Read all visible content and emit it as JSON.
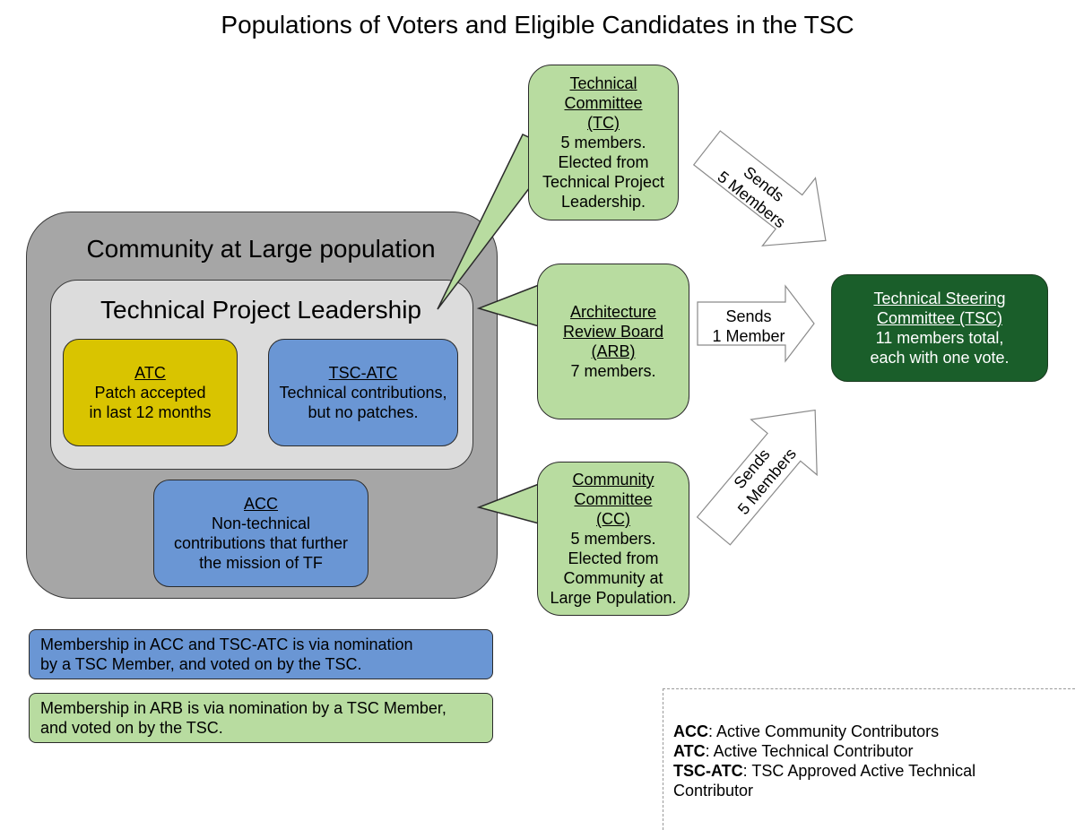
{
  "title": "Populations of Voters and Eligible Candidates in the TSC",
  "community_population": {
    "label": "Community at Large population"
  },
  "technical_project_leadership": {
    "label": "Technical Project Leadership"
  },
  "atc_box": {
    "heading": "ATC",
    "line1": "Patch accepted",
    "line2": "in last 12 months"
  },
  "tsc_atc_box": {
    "heading": "TSC-ATC",
    "line1": "Technical contributions,",
    "line2": "but no patches."
  },
  "acc_box": {
    "heading": "ACC",
    "line1": "Non-technical",
    "line2": "contributions that further",
    "line3": "the mission of TF"
  },
  "tc_box": {
    "heading1": "Technical",
    "heading2": "Committee",
    "heading3": "(TC)",
    "line1": "5 members.",
    "line2": "Elected from",
    "line3": "Technical Project",
    "line4": "Leadership."
  },
  "arb_box": {
    "heading1": "Architecture",
    "heading2": "Review Board",
    "heading3": "(ARB)",
    "line1": "7 members."
  },
  "cc_box": {
    "heading1": "Community",
    "heading2": "Committee",
    "heading3": "(CC)",
    "line1": "5 members.",
    "line2": "Elected from",
    "line3": "Community at",
    "line4": "Large Population."
  },
  "tsc_box": {
    "heading1": "Technical Steering",
    "heading2": "Committee (TSC)",
    "line1": "11 members total,",
    "line2": "each with one vote."
  },
  "arrows": {
    "tc": {
      "line1": "Sends",
      "line2": "5 Members"
    },
    "arb": {
      "line1": "Sends",
      "line2": "1 Member"
    },
    "cc": {
      "line1": "Sends",
      "line2": "5 Members"
    }
  },
  "notes": {
    "acc_tsc_atc": {
      "line1": "Membership in ACC and TSC-ATC is via nomination",
      "line2": "by a TSC Member, and voted on by the TSC."
    },
    "arb": {
      "line1": "Membership in ARB is via nomination by a TSC Member,",
      "line2": "and voted on by the TSC."
    }
  },
  "legend": {
    "acc_term": "ACC",
    "acc_def": ": Active Community Contributors",
    "atc_term": "ATC",
    "atc_def": ": Active Technical Contributor",
    "tsc_atc_term": "TSC-ATC",
    "tsc_atc_def": ": TSC Approved Active Technical",
    "tsc_atc_def2": "Contributor"
  },
  "colors": {
    "community_population": "#a6a6a6",
    "technical_project_leadership": "#dcdcdc",
    "atc": "#d9c400",
    "blue_boxes": "#6a96d4",
    "green_boxes": "#b8dca0",
    "tsc": "#1a5e2a"
  }
}
